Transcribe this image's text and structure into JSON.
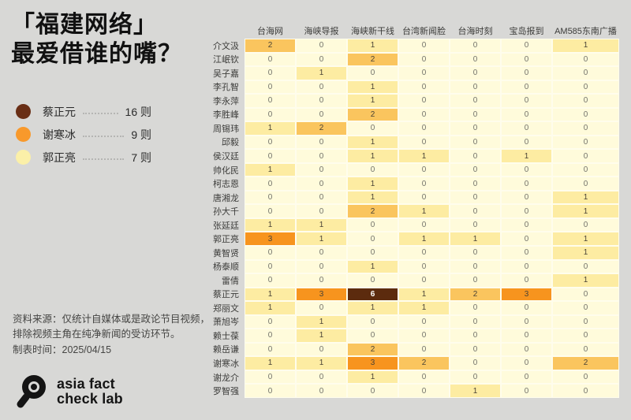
{
  "title": {
    "line1": "「福建网络」",
    "line2": "最爱借谁的嘴？"
  },
  "legend": {
    "items": [
      {
        "name": "蔡正元",
        "count": "16 则",
        "color": "#692e15"
      },
      {
        "name": "谢寒冰",
        "count": "9 则",
        "color": "#f8992b"
      },
      {
        "name": "郭正亮",
        "count": "7 则",
        "color": "#fbf0a8"
      }
    ]
  },
  "footer": {
    "source_line1": "资料来源：仅统计自媒体或是政论节目视频，",
    "source_line2": "排除视频主角在纯净新闻的受访环节。",
    "date_line": "制表时间：2025/04/15"
  },
  "logo": {
    "line1": "asia fact",
    "line2": "check lab"
  },
  "chart_data": {
    "type": "heatmap",
    "title": "「福建网络」最爱借谁的嘴？",
    "columns": [
      "台海网",
      "海峡导报",
      "海峡新干线",
      "台湾新闻脸",
      "台海时刻",
      "宝岛报到",
      "AM585东南广播"
    ],
    "rows": [
      "介文汲",
      "江岷钦",
      "吴子嘉",
      "李孔智",
      "李永萍",
      "李胜峰",
      "周锡玮",
      "邱毅",
      "侯汉廷",
      "帅化民",
      "柯志恩",
      "唐湘龙",
      "孙大千",
      "张延廷",
      "郭正亮",
      "黄智贤",
      "杨泰顺",
      "雷倩",
      "蔡正元",
      "郑丽文",
      "萧旭岑",
      "赖士葆",
      "赖岳谦",
      "谢寒冰",
      "谢龙介",
      "罗智强"
    ],
    "values": [
      [
        2,
        0,
        1,
        0,
        0,
        0,
        1
      ],
      [
        0,
        0,
        2,
        0,
        0,
        0,
        0
      ],
      [
        0,
        1,
        0,
        0,
        0,
        0,
        0
      ],
      [
        0,
        0,
        1,
        0,
        0,
        0,
        0
      ],
      [
        0,
        0,
        1,
        0,
        0,
        0,
        0
      ],
      [
        0,
        0,
        2,
        0,
        0,
        0,
        0
      ],
      [
        1,
        2,
        0,
        0,
        0,
        0,
        0
      ],
      [
        0,
        0,
        1,
        0,
        0,
        0,
        0
      ],
      [
        0,
        0,
        1,
        1,
        0,
        1,
        0
      ],
      [
        1,
        0,
        0,
        0,
        0,
        0,
        0
      ],
      [
        0,
        0,
        1,
        0,
        0,
        0,
        0
      ],
      [
        0,
        0,
        1,
        0,
        0,
        0,
        1
      ],
      [
        0,
        0,
        2,
        1,
        0,
        0,
        1
      ],
      [
        1,
        1,
        0,
        0,
        0,
        0,
        0
      ],
      [
        3,
        1,
        0,
        1,
        1,
        0,
        1
      ],
      [
        0,
        0,
        0,
        0,
        0,
        0,
        1
      ],
      [
        0,
        0,
        1,
        0,
        0,
        0,
        0
      ],
      [
        0,
        0,
        0,
        0,
        0,
        0,
        1
      ],
      [
        1,
        3,
        6,
        1,
        2,
        3,
        0
      ],
      [
        1,
        0,
        1,
        1,
        0,
        0,
        0
      ],
      [
        0,
        1,
        0,
        0,
        0,
        0,
        0
      ],
      [
        0,
        1,
        0,
        0,
        0,
        0,
        0
      ],
      [
        0,
        0,
        2,
        0,
        0,
        0,
        0
      ],
      [
        1,
        1,
        3,
        2,
        0,
        0,
        2
      ],
      [
        0,
        0,
        1,
        0,
        0,
        0,
        0
      ],
      [
        0,
        0,
        0,
        0,
        1,
        0,
        0
      ]
    ],
    "color_scale": {
      "0": "#fffbdb",
      "1": "#fdeca2",
      "2": "#fac55e",
      "3": "#f7941e",
      "6": "#5c2b0e"
    },
    "legend_totals": [
      {
        "name": "蔡正元",
        "total": 16
      },
      {
        "name": "谢寒冰",
        "total": 9
      },
      {
        "name": "郭正亮",
        "total": 7
      }
    ]
  }
}
